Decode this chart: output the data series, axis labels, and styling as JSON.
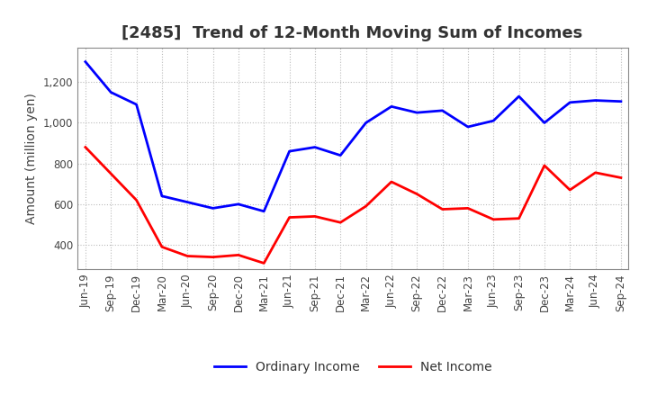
{
  "title": "[2485]  Trend of 12-Month Moving Sum of Incomes",
  "ylabel": "Amount (million yen)",
  "x_labels": [
    "Jun-19",
    "Sep-19",
    "Dec-19",
    "Mar-20",
    "Jun-20",
    "Sep-20",
    "Dec-20",
    "Mar-21",
    "Jun-21",
    "Sep-21",
    "Dec-21",
    "Mar-22",
    "Jun-22",
    "Sep-22",
    "Dec-22",
    "Mar-23",
    "Jun-23",
    "Sep-23",
    "Dec-23",
    "Mar-24",
    "Jun-24",
    "Sep-24"
  ],
  "ordinary_income": [
    1300,
    1150,
    1090,
    640,
    610,
    580,
    600,
    565,
    860,
    880,
    840,
    1000,
    1080,
    1050,
    1060,
    980,
    1010,
    1130,
    1000,
    1100,
    1110,
    1105
  ],
  "net_income": [
    880,
    750,
    620,
    390,
    345,
    340,
    350,
    310,
    535,
    540,
    510,
    590,
    710,
    650,
    575,
    580,
    525,
    530,
    790,
    670,
    755,
    730
  ],
  "ordinary_income_color": "#0000ff",
  "net_income_color": "#ff0000",
  "background_color": "#ffffff",
  "grid_color": "#bbbbbb",
  "ylim": [
    280,
    1370
  ],
  "yticks": [
    400,
    600,
    800,
    1000,
    1200
  ],
  "legend_labels": [
    "Ordinary Income",
    "Net Income"
  ],
  "title_fontsize": 13,
  "axis_fontsize": 10,
  "tick_fontsize": 8.5,
  "line_width": 2.0,
  "title_color": "#333333"
}
